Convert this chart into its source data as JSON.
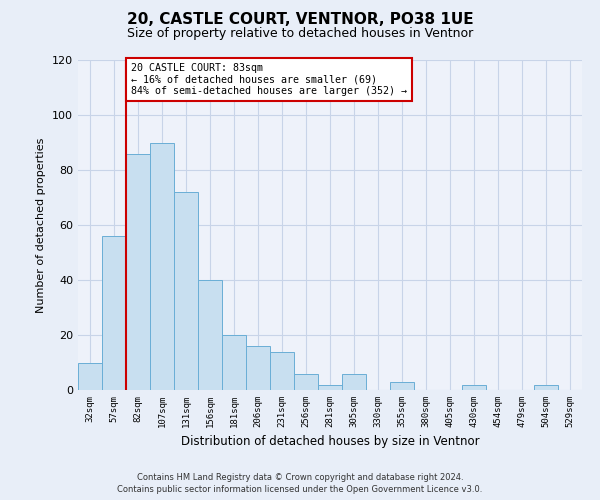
{
  "title": "20, CASTLE COURT, VENTNOR, PO38 1UE",
  "subtitle": "Size of property relative to detached houses in Ventnor",
  "xlabel": "Distribution of detached houses by size in Ventnor",
  "ylabel": "Number of detached properties",
  "bar_labels": [
    "32sqm",
    "57sqm",
    "82sqm",
    "107sqm",
    "131sqm",
    "156sqm",
    "181sqm",
    "206sqm",
    "231sqm",
    "256sqm",
    "281sqm",
    "305sqm",
    "330sqm",
    "355sqm",
    "380sqm",
    "405sqm",
    "430sqm",
    "454sqm",
    "479sqm",
    "504sqm",
    "529sqm"
  ],
  "bar_values": [
    10,
    56,
    86,
    90,
    72,
    40,
    20,
    16,
    14,
    6,
    2,
    6,
    0,
    3,
    0,
    0,
    2,
    0,
    0,
    2,
    0
  ],
  "bar_color": "#c8dff0",
  "bar_edge_color": "#6aaed6",
  "marker_index": 2,
  "marker_color": "#cc0000",
  "annotation_text": "20 CASTLE COURT: 83sqm\n← 16% of detached houses are smaller (69)\n84% of semi-detached houses are larger (352) →",
  "annotation_box_edge_color": "#cc0000",
  "ylim": [
    0,
    120
  ],
  "yticks": [
    0,
    20,
    40,
    60,
    80,
    100,
    120
  ],
  "footer_line1": "Contains HM Land Registry data © Crown copyright and database right 2024.",
  "footer_line2": "Contains public sector information licensed under the Open Government Licence v3.0.",
  "background_color": "#e8eef8",
  "plot_background_color": "#eef2fa"
}
